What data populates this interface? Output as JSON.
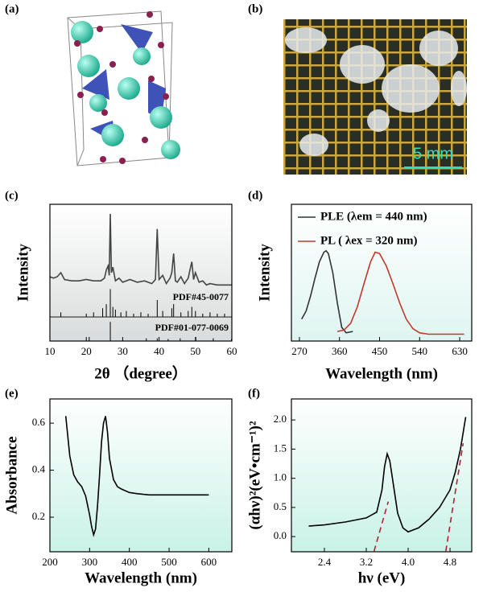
{
  "images": [
    {
      "label": "(a)"
    },
    {
      "label": "(b)",
      "scale_bar": "5 mm"
    }
  ],
  "chart_data": [
    {
      "type": "xrd",
      "panel": "(c)",
      "xlabel": "2θ （degree）",
      "ylabel": "Intensity",
      "xlim": [
        10,
        60
      ],
      "xticks": [
        10,
        20,
        30,
        40,
        50,
        60
      ],
      "ylim": [
        0,
        100
      ],
      "background": [
        "#ffffff",
        "#d9dcdc"
      ],
      "series": [
        {
          "color": "#444444",
          "x": [
            10,
            11,
            12,
            13,
            14,
            16,
            18,
            20,
            22,
            24,
            25,
            25.5,
            26,
            26.3,
            26.6,
            26.9,
            27.3,
            28,
            29,
            30,
            32,
            34,
            36,
            38,
            39,
            39.5,
            40,
            41,
            42,
            43,
            43.5,
            44,
            44.5,
            45,
            46,
            47,
            48,
            48.5,
            49,
            49.5,
            50,
            51,
            52,
            53,
            54,
            56,
            58,
            60
          ],
          "values": [
            47,
            46,
            47,
            50,
            45,
            44,
            44,
            45,
            44,
            44,
            46,
            52,
            55,
            48,
            93,
            50,
            54,
            44,
            46,
            43,
            45,
            43,
            44,
            42,
            45,
            82,
            45,
            48,
            42,
            46,
            50,
            64,
            44,
            43,
            47,
            42,
            46,
            52,
            58,
            45,
            50,
            43,
            44,
            41,
            42,
            41,
            41,
            41
          ]
        }
      ],
      "sticks": [
        {
          "name": "PDF#45-0077",
          "color": "#000000",
          "base": 17.6,
          "x": [
            13,
            20,
            22,
            24.5,
            25.5,
            26.6,
            27.3,
            28,
            29.5,
            31,
            33,
            35,
            37,
            39.5,
            41,
            43.5,
            44,
            46,
            48,
            49,
            50,
            52,
            54,
            56,
            58
          ],
          "values": [
            21,
            20,
            21,
            24,
            27,
            38,
            25,
            23,
            21,
            22,
            20,
            21,
            20,
            30,
            22,
            24,
            27,
            21,
            22,
            25,
            22,
            20,
            21,
            20,
            20
          ]
        },
        {
          "name": "PDF#01-077-0069",
          "color": "#000000",
          "base": 0,
          "x": [
            20.8,
            26.6,
            36.5,
            39.5,
            42.5,
            45.8,
            50.1,
            54.9,
            59.9
          ],
          "values": [
            3,
            14,
            2,
            2,
            1.5,
            2,
            3,
            2,
            1.5
          ]
        }
      ]
    },
    {
      "type": "line",
      "panel": "(d)",
      "xlabel": "Wavelength (nm)",
      "ylabel": "Intensity",
      "xlim": [
        252,
        657
      ],
      "xticks": [
        270,
        360,
        450,
        540,
        630
      ],
      "ylim": [
        0,
        100
      ],
      "background": [
        "#ffffff",
        "#dff5f1"
      ],
      "legend": "top-left",
      "series": [
        {
          "name": "PLE (λem = 440 nm)",
          "color": "#333333",
          "x": [
            275,
            285,
            295,
            305,
            315,
            325,
            330,
            335,
            345,
            355,
            365,
            375,
            390
          ],
          "values": [
            16,
            22,
            33,
            46,
            58,
            65,
            66,
            64,
            50,
            28,
            10,
            6,
            7
          ]
        },
        {
          "name": "PL    ( λex = 320 nm)",
          "color": "#c0392b",
          "x": [
            355,
            370,
            385,
            400,
            415,
            430,
            440,
            450,
            465,
            480,
            495,
            510,
            525,
            540,
            560,
            600,
            640
          ],
          "values": [
            7,
            8,
            13,
            25,
            42,
            58,
            65,
            64,
            55,
            42,
            28,
            16,
            9,
            6,
            5,
            5,
            5
          ]
        }
      ]
    },
    {
      "type": "line",
      "panel": "(e)",
      "xlabel": "Wavelength (nm)",
      "ylabel": "Absorbance",
      "xlim": [
        200,
        658
      ],
      "xticks": [
        200,
        300,
        400,
        500,
        600
      ],
      "ylim": [
        0.053,
        0.703
      ],
      "yticks": [
        0.2,
        0.4,
        0.6
      ],
      "background": [
        "#ffffff",
        "#c9f2e6"
      ],
      "series": [
        {
          "color": "#000000",
          "x": [
            240,
            250,
            260,
            270,
            280,
            290,
            300,
            305,
            310,
            315,
            320,
            325,
            330,
            335,
            340,
            345,
            350,
            360,
            370,
            380,
            400,
            420,
            450,
            500,
            550,
            600
          ],
          "values": [
            0.63,
            0.46,
            0.38,
            0.35,
            0.33,
            0.29,
            0.21,
            0.16,
            0.125,
            0.15,
            0.25,
            0.38,
            0.52,
            0.6,
            0.63,
            0.56,
            0.45,
            0.36,
            0.33,
            0.32,
            0.305,
            0.3,
            0.295,
            0.295,
            0.295,
            0.295
          ]
        }
      ]
    },
    {
      "type": "line",
      "panel": "(f)",
      "xlabel": "hν (eV)",
      "ylabel": "(αhν)²(eV•cm⁻¹)²",
      "xlim": [
        1.77,
        5.215
      ],
      "xticks": [
        2.4,
        3.2,
        {
          "value": 4,
          "label": "4.0"
        },
        4.8
      ],
      "ylim": [
        -0.26,
        2.36
      ],
      "yticks": [
        {
          "value": 0,
          "label": "0.0"
        },
        0.5,
        {
          "value": 1,
          "label": "1.0"
        },
        1.5,
        {
          "value": 2,
          "label": "2.0"
        }
      ],
      "background": [
        "#ffffff",
        "#c9f2e6"
      ],
      "series": [
        {
          "color": "#000000",
          "x": [
            2.1,
            2.4,
            2.8,
            3.2,
            3.4,
            3.5,
            3.55,
            3.6,
            3.65,
            3.7,
            3.8,
            3.9,
            4.0,
            4.2,
            4.4,
            4.6,
            4.8,
            4.9,
            5.0,
            5.1
          ],
          "values": [
            0.18,
            0.2,
            0.25,
            0.32,
            0.42,
            0.8,
            1.2,
            1.42,
            1.3,
            1.0,
            0.4,
            0.15,
            0.08,
            0.15,
            0.3,
            0.5,
            0.8,
            1.1,
            1.5,
            2.05
          ]
        },
        {
          "color": "#b0203a",
          "dash": true,
          "x": [
            3.35,
            3.62
          ],
          "values": [
            -0.25,
            0.6
          ]
        },
        {
          "color": "#b0203a",
          "dash": true,
          "x": [
            4.72,
            5.05
          ],
          "values": [
            -0.25,
            1.6
          ]
        }
      ]
    }
  ]
}
